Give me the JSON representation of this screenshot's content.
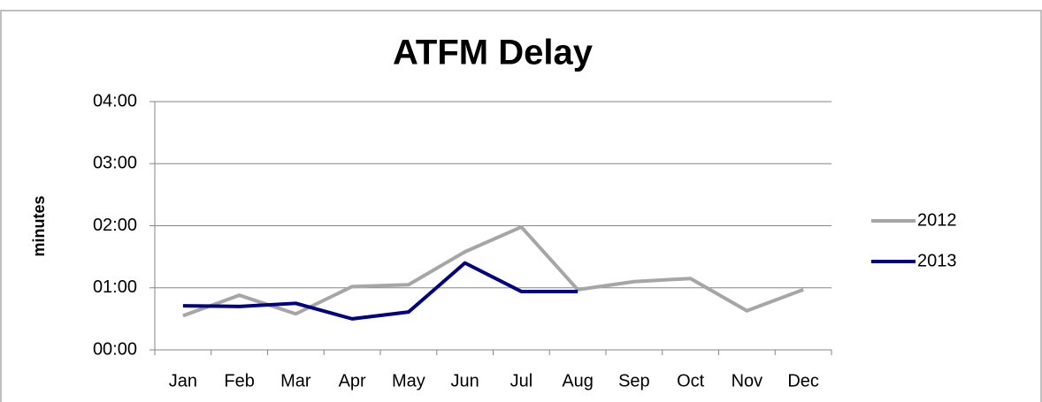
{
  "chart_data": {
    "type": "line",
    "title": "ATFM Delay",
    "y_label": "minutes",
    "categories": [
      "Jan",
      "Feb",
      "Mar",
      "Apr",
      "May",
      "Jun",
      "Jul",
      "Aug",
      "Sep",
      "Oct",
      "Nov",
      "Dec"
    ],
    "series": [
      {
        "name": "2012",
        "color": "#a6a6a6",
        "values": [
          0.55,
          0.88,
          0.58,
          1.02,
          1.05,
          1.58,
          1.98,
          0.97,
          1.1,
          1.15,
          0.63,
          0.97
        ]
      },
      {
        "name": "2013",
        "color": "#000080",
        "values": [
          0.71,
          0.7,
          0.75,
          0.5,
          0.61,
          1.4,
          0.94,
          0.94,
          null,
          null,
          null,
          null
        ]
      }
    ],
    "ylim": [
      0,
      4
    ],
    "yticks": [
      {
        "value": 0,
        "label": "00:00"
      },
      {
        "value": 1,
        "label": "01:00"
      },
      {
        "value": 2,
        "label": "02:00"
      },
      {
        "value": 3,
        "label": "03:00"
      },
      {
        "value": 4,
        "label": "04:00"
      }
    ],
    "grid": true,
    "legend": "right"
  }
}
